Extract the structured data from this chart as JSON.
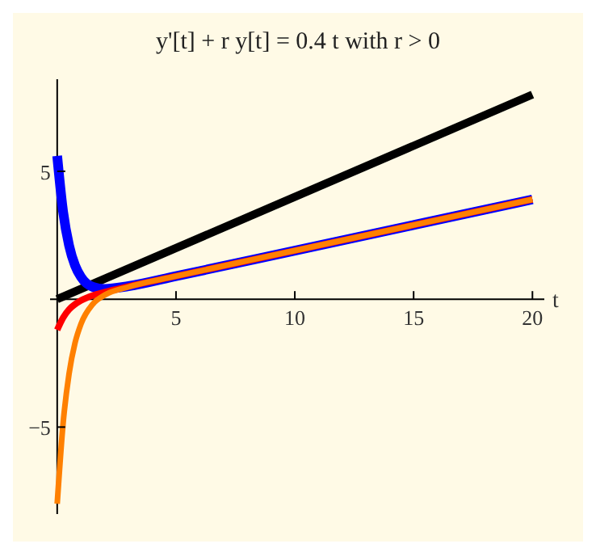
{
  "chart_data": {
    "type": "line",
    "title": "y'[t] + r y[t] = 0.4 t with r > 0",
    "xlabel": "t",
    "xlim": [
      -0.3,
      20.5
    ],
    "ylim": [
      -8.4,
      8.6
    ],
    "xticks": [
      5,
      10,
      15,
      20
    ],
    "yticks": [
      {
        "value": -5,
        "label": "−5"
      },
      5
    ],
    "marker": "none",
    "line_style": "solid",
    "series": [
      {
        "color": "#000000",
        "x": [
          0,
          20
        ],
        "values": [
          0,
          8
        ]
      },
      {
        "color": "#0000ff",
        "x": [
          0,
          0.25,
          0.5,
          0.75,
          1,
          1.5,
          2,
          3,
          5,
          10,
          20
        ],
        "values": [
          5.6,
          3.41,
          2.1,
          1.32,
          0.87,
          0.48,
          0.4,
          0.51,
          0.9,
          1.9,
          3.9
        ]
      },
      {
        "color": "#ff0000",
        "x": [
          0,
          0.25,
          0.5,
          0.75,
          1,
          1.5,
          2,
          3,
          5,
          10,
          20
        ],
        "values": [
          -1.2,
          -0.72,
          -0.4,
          -0.2,
          -0.05,
          0.15,
          0.28,
          0.5,
          0.9,
          1.9,
          3.9
        ]
      },
      {
        "color": "#ff8000",
        "x": [
          0,
          0.25,
          0.5,
          0.75,
          1,
          1.5,
          2,
          3,
          5,
          10,
          20
        ],
        "values": [
          -8,
          -4.84,
          -2.91,
          -1.71,
          -0.97,
          -0.19,
          0.16,
          0.48,
          0.9,
          1.9,
          3.9
        ]
      }
    ]
  }
}
